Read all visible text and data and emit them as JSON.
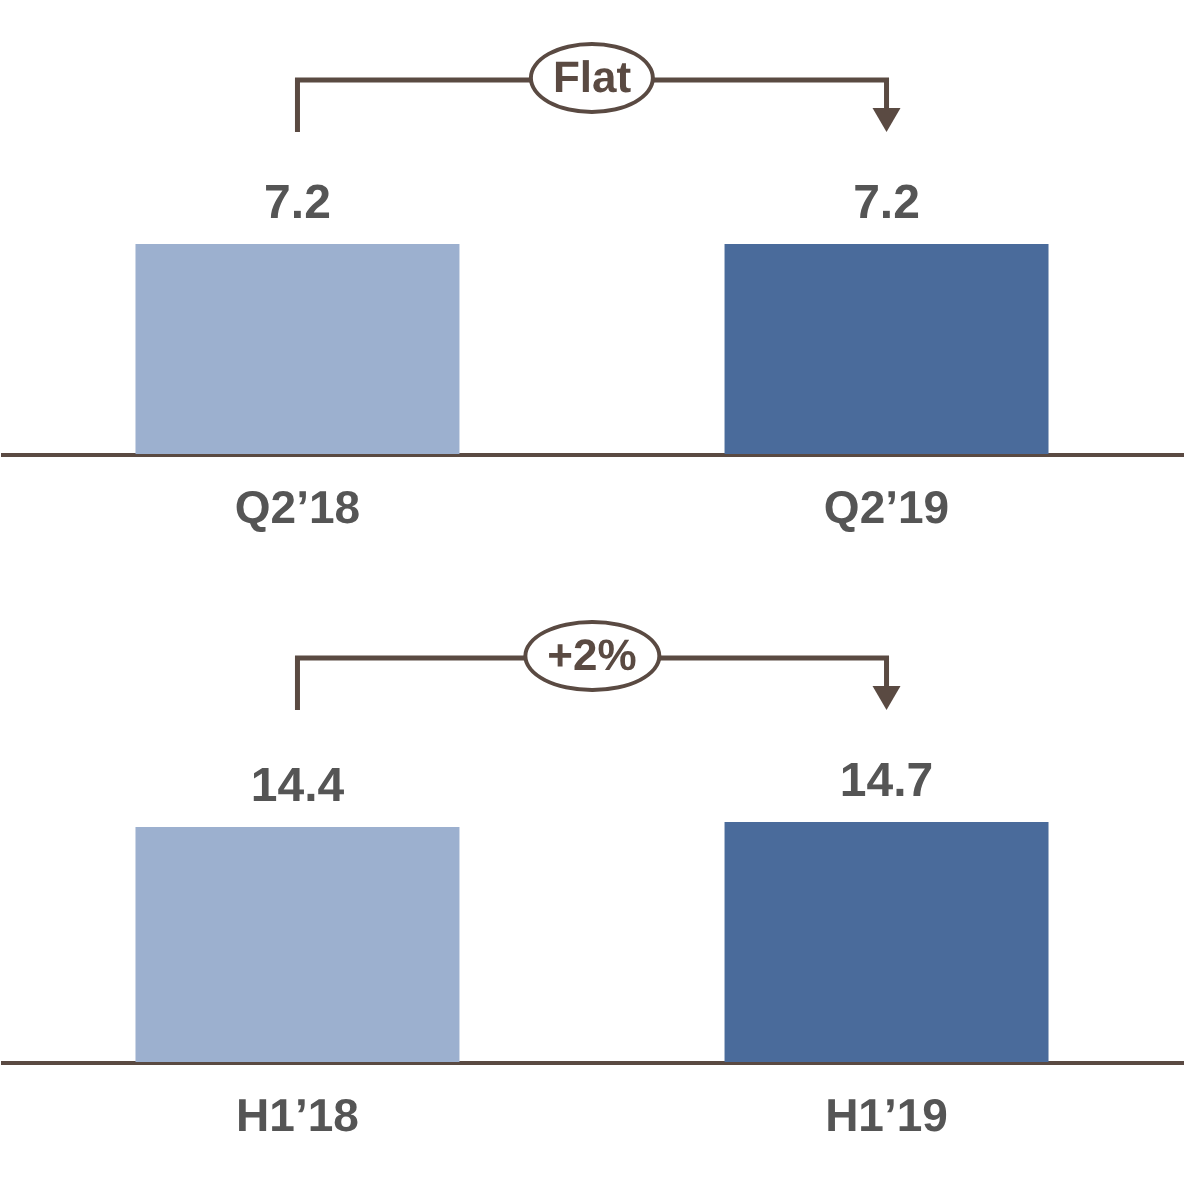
{
  "chart_data": [
    {
      "type": "bar",
      "categories": [
        "Q2’18",
        "Q2’19"
      ],
      "values": [
        7.2,
        7.2
      ],
      "colors": [
        "#9cb0cf",
        "#4a6b9b"
      ],
      "data_labels": true,
      "annotations": [
        "Flat"
      ]
    },
    {
      "type": "bar",
      "categories": [
        "H1’18",
        "H1’19"
      ],
      "values": [
        14.4,
        14.7
      ],
      "colors": [
        "#9cb0cf",
        "#4a6b9b"
      ],
      "data_labels": true,
      "annotations": [
        "+2%"
      ]
    }
  ]
}
